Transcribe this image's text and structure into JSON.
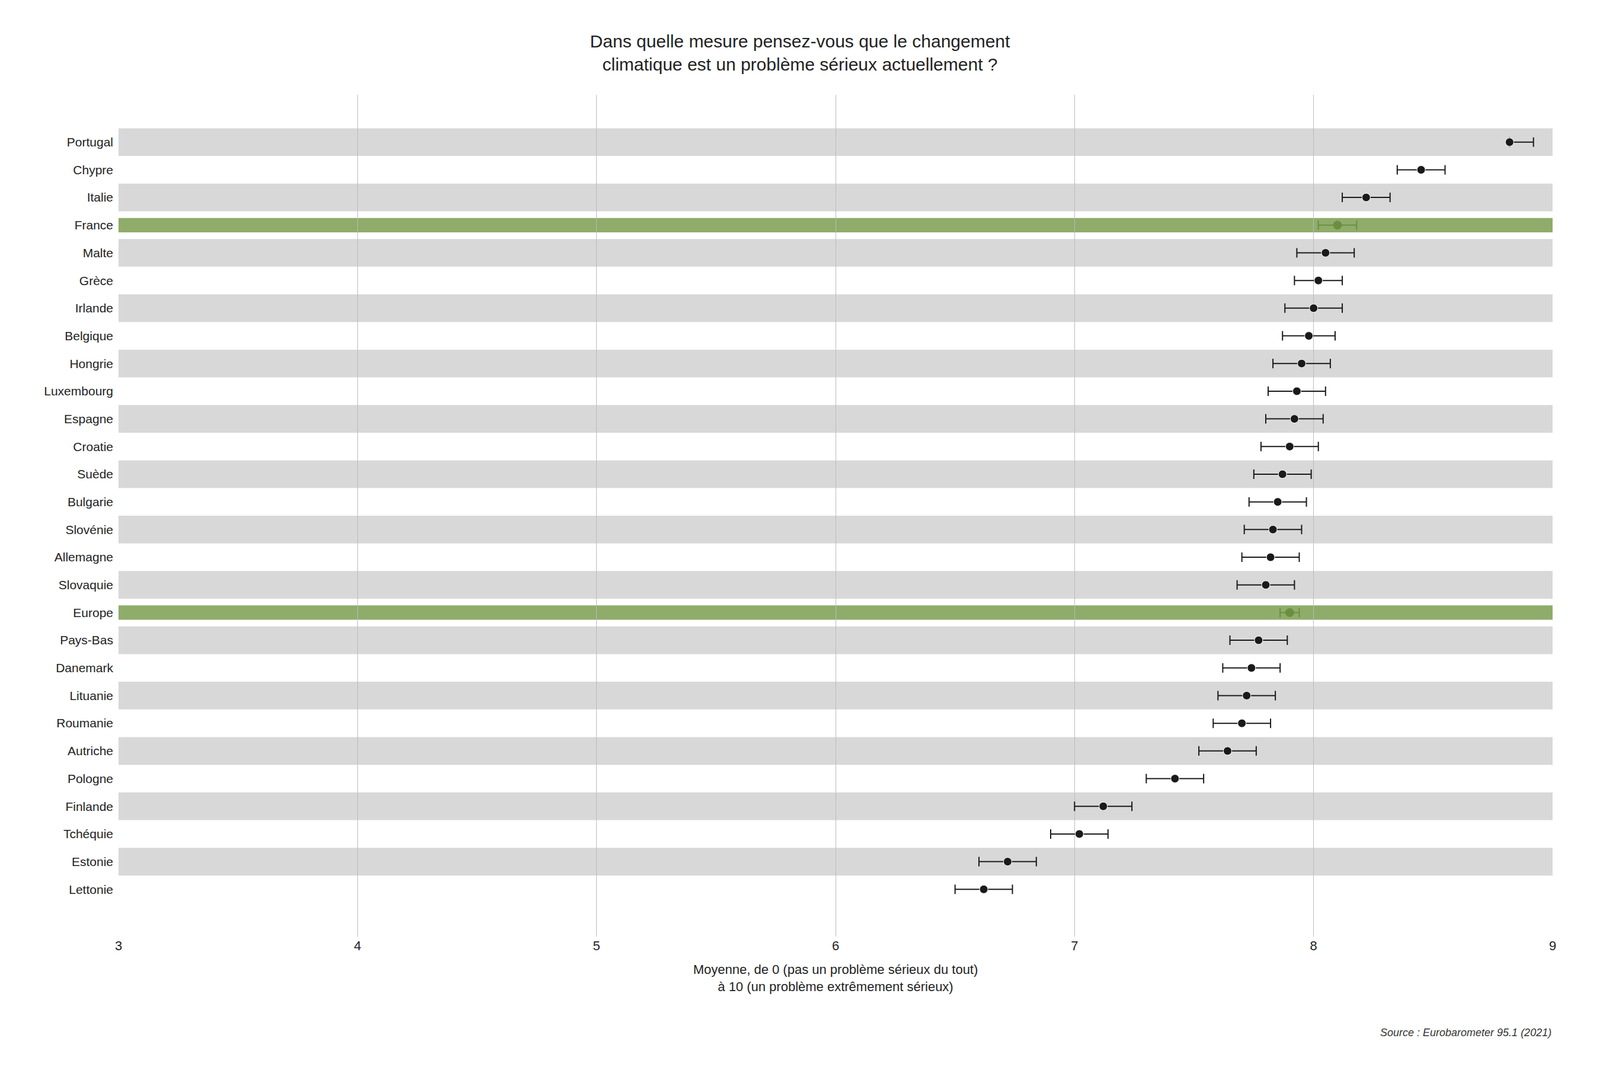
{
  "chart_data": {
    "type": "dot",
    "orientation": "horizontal",
    "title": "Dans quelle mesure pensez-vous que le changement\nclimatique est un problème sérieux actuellement ?",
    "xlabel": "Moyenne, de 0 (pas un problème sérieux du tout)\nà 10 (un problème extrêmement sérieux)",
    "annotation": "Source : Eurobarometer 95.1 (2021)",
    "categories": [
      "Portugal",
      "Chypre",
      "Italie",
      "France",
      "Malte",
      "Grèce",
      "Irlande",
      "Belgique",
      "Hongrie",
      "Luxembourg",
      "Espagne",
      "Croatie",
      "Suède",
      "Bulgarie",
      "Slovénie",
      "Allemagne",
      "Slovaquie",
      "Europe",
      "Pays-Bas",
      "Danemark",
      "Lituanie",
      "Roumanie",
      "Autriche",
      "Pologne",
      "Finlande",
      "Tchéquie",
      "Estonie",
      "Lettonie"
    ],
    "values": [
      8.82,
      8.45,
      8.22,
      8.1,
      8.05,
      8.02,
      8.0,
      7.98,
      7.95,
      7.93,
      7.92,
      7.9,
      7.87,
      7.85,
      7.83,
      7.82,
      7.8,
      7.9,
      7.77,
      7.74,
      7.72,
      7.7,
      7.64,
      7.42,
      7.12,
      7.02,
      6.72,
      6.62
    ],
    "ci_low": [
      8.82,
      8.35,
      8.12,
      8.02,
      7.93,
      7.92,
      7.88,
      7.87,
      7.83,
      7.81,
      7.8,
      7.78,
      7.75,
      7.73,
      7.71,
      7.7,
      7.68,
      7.86,
      7.65,
      7.62,
      7.6,
      7.58,
      7.52,
      7.3,
      7.0,
      6.9,
      6.6,
      6.5
    ],
    "ci_high": [
      8.92,
      8.55,
      8.32,
      8.18,
      8.17,
      8.12,
      8.12,
      8.09,
      8.07,
      8.05,
      8.04,
      8.02,
      7.99,
      7.97,
      7.95,
      7.94,
      7.92,
      7.94,
      7.89,
      7.86,
      7.84,
      7.82,
      7.76,
      7.54,
      7.24,
      7.14,
      6.84,
      6.74
    ],
    "colors": [
      "#1a1a1a",
      "#1a1a1a",
      "#1a1a1a",
      "#6b8f3e",
      "#1a1a1a",
      "#1a1a1a",
      "#1a1a1a",
      "#1a1a1a",
      "#1a1a1a",
      "#1a1a1a",
      "#1a1a1a",
      "#1a1a1a",
      "#1a1a1a",
      "#1a1a1a",
      "#1a1a1a",
      "#1a1a1a",
      "#1a1a1a",
      "#6b8f3e",
      "#1a1a1a",
      "#1a1a1a",
      "#1a1a1a",
      "#1a1a1a",
      "#1a1a1a",
      "#1a1a1a",
      "#1a1a1a",
      "#1a1a1a",
      "#1a1a1a",
      "#1a1a1a"
    ],
    "xlim": [
      3,
      9
    ],
    "xticks": [
      3,
      4,
      5,
      6,
      7,
      8,
      9
    ],
    "grid": true
  }
}
